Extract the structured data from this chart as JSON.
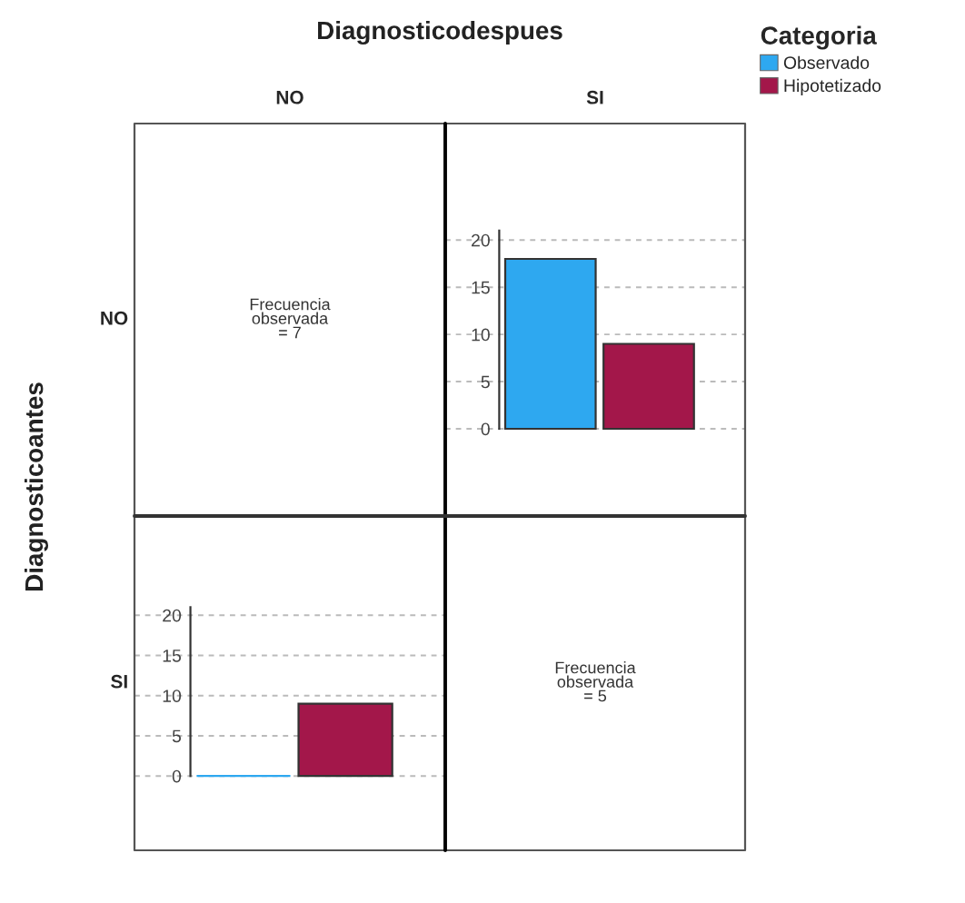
{
  "chart_data": [
    {
      "type": "other",
      "title": "Diagnosticodespues",
      "subtitle": "NO",
      "ylabel": "NO",
      "y2label": "Diagnosticoantes",
      "annotations": [
        "Frecuencia\nobservada\n= 7"
      ]
    },
    {
      "type": "bar",
      "subtitle": "SI",
      "categories": [
        null
      ],
      "legend": "right",
      "legend_title": "Categoria",
      "tick_labels": "y",
      "grid": "y",
      "ylim": [
        0,
        21
      ],
      "yticks": [
        0,
        5,
        10,
        15,
        20
      ],
      "series": [
        {
          "name": "Observado",
          "color": "#2ea8f0",
          "values": [
            18
          ]
        },
        {
          "name": "Hipotetizado",
          "color": "#a3174a",
          "values": [
            9
          ]
        }
      ]
    },
    {
      "type": "bar",
      "ylabel": "SI",
      "categories": [
        null
      ],
      "tick_labels": "y",
      "grid": "y",
      "ylim": [
        0,
        21
      ],
      "yticks": [
        0,
        5,
        10,
        15,
        20
      ],
      "series": [
        {
          "color": "#2ea8f0",
          "values": [
            0
          ]
        },
        {
          "color": "#a3174a",
          "values": [
            9
          ]
        }
      ]
    },
    {
      "type": "other",
      "annotations": [
        "Frecuencia\nobservada\n= 5"
      ]
    }
  ]
}
